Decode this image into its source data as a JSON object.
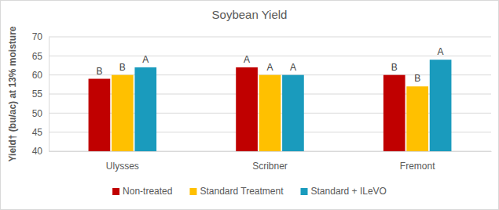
{
  "chart_data": {
    "type": "bar",
    "title": "Soybean Yield",
    "y_label": "Yield† (bu/ac) at 13% moisture",
    "categories": [
      "Ulysses",
      "Scribner",
      "Fremont"
    ],
    "series": [
      {
        "name": "Non-treated",
        "color": "#c00000",
        "values": [
          59,
          62,
          60
        ],
        "letters": [
          "B",
          "A",
          "B"
        ]
      },
      {
        "name": "Standard Treatment",
        "color": "#ffc000",
        "values": [
          60,
          60,
          57
        ],
        "letters": [
          "B",
          "A",
          "B"
        ]
      },
      {
        "name": "Standard + ILeVO",
        "color": "#1a9bbd",
        "values": [
          62,
          60,
          64
        ],
        "letters": [
          "A",
          "A",
          "A"
        ]
      }
    ],
    "ylim": [
      40,
      70
    ],
    "yticks": [
      40,
      45,
      50,
      55,
      60,
      65,
      70
    ],
    "grid": true,
    "legend": "bottom"
  }
}
